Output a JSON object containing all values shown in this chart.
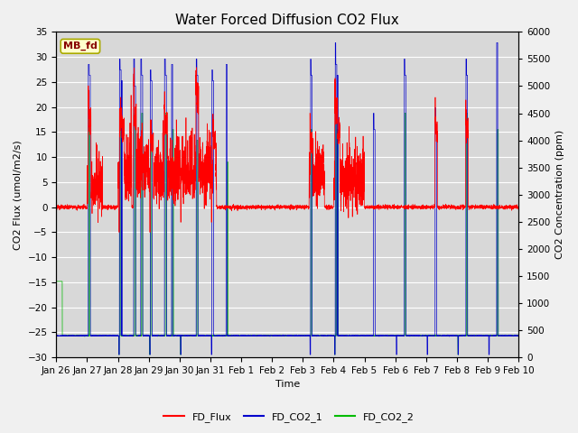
{
  "title": "Water Forced Diffusion CO2 Flux",
  "xlabel": "Time",
  "ylabel_left": "CO2 Flux (umol/m2/s)",
  "ylabel_right": "CO2 Concentration (ppm)",
  "ylim_left": [
    -30,
    35
  ],
  "ylim_right": [
    0,
    6000
  ],
  "yticks_left": [
    -30,
    -25,
    -20,
    -15,
    -10,
    -5,
    0,
    5,
    10,
    15,
    20,
    25,
    30,
    35
  ],
  "yticks_right": [
    0,
    500,
    1000,
    1500,
    2000,
    2500,
    3000,
    3500,
    4000,
    4500,
    5000,
    5500,
    6000
  ],
  "xtick_labels": [
    "Jan 26",
    "Jan 27",
    "Jan 28",
    "Jan 29",
    "Jan 30",
    "Jan 31",
    "Feb 1",
    "Feb 2",
    "Feb 3",
    "Feb 4",
    "Feb 5",
    "Feb 6",
    "Feb 7",
    "Feb 8",
    "Feb 9",
    "Feb 10"
  ],
  "box_label": "MB_fd",
  "colors": {
    "FD_Flux": "#ff0000",
    "FD_CO2_1": "#0000cc",
    "FD_CO2_2": "#00bb00"
  },
  "background_color": "#d8d8d8",
  "fig_background": "#f0f0f0",
  "grid_color": "#ffffff",
  "title_fontsize": 11,
  "label_fontsize": 8,
  "tick_fontsize": 7.5
}
